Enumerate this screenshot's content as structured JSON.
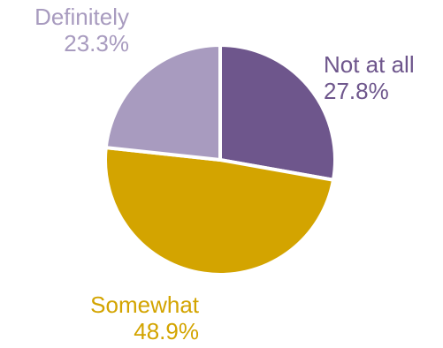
{
  "chart_data": {
    "type": "pie",
    "title": "",
    "start": "12 o'clock",
    "direction": "clockwise",
    "slices": [
      {
        "label": "Not at all",
        "value": 27.8,
        "value_label": "27.8%",
        "color": "#6e568c"
      },
      {
        "label": "Somewhat",
        "value": 48.9,
        "value_label": "48.9%",
        "color": "#d3a400"
      },
      {
        "label": "Definitely",
        "value": 23.3,
        "value_label": "23.3%",
        "color": "#a89bbf"
      }
    ],
    "separator_color": "#ffffff"
  }
}
